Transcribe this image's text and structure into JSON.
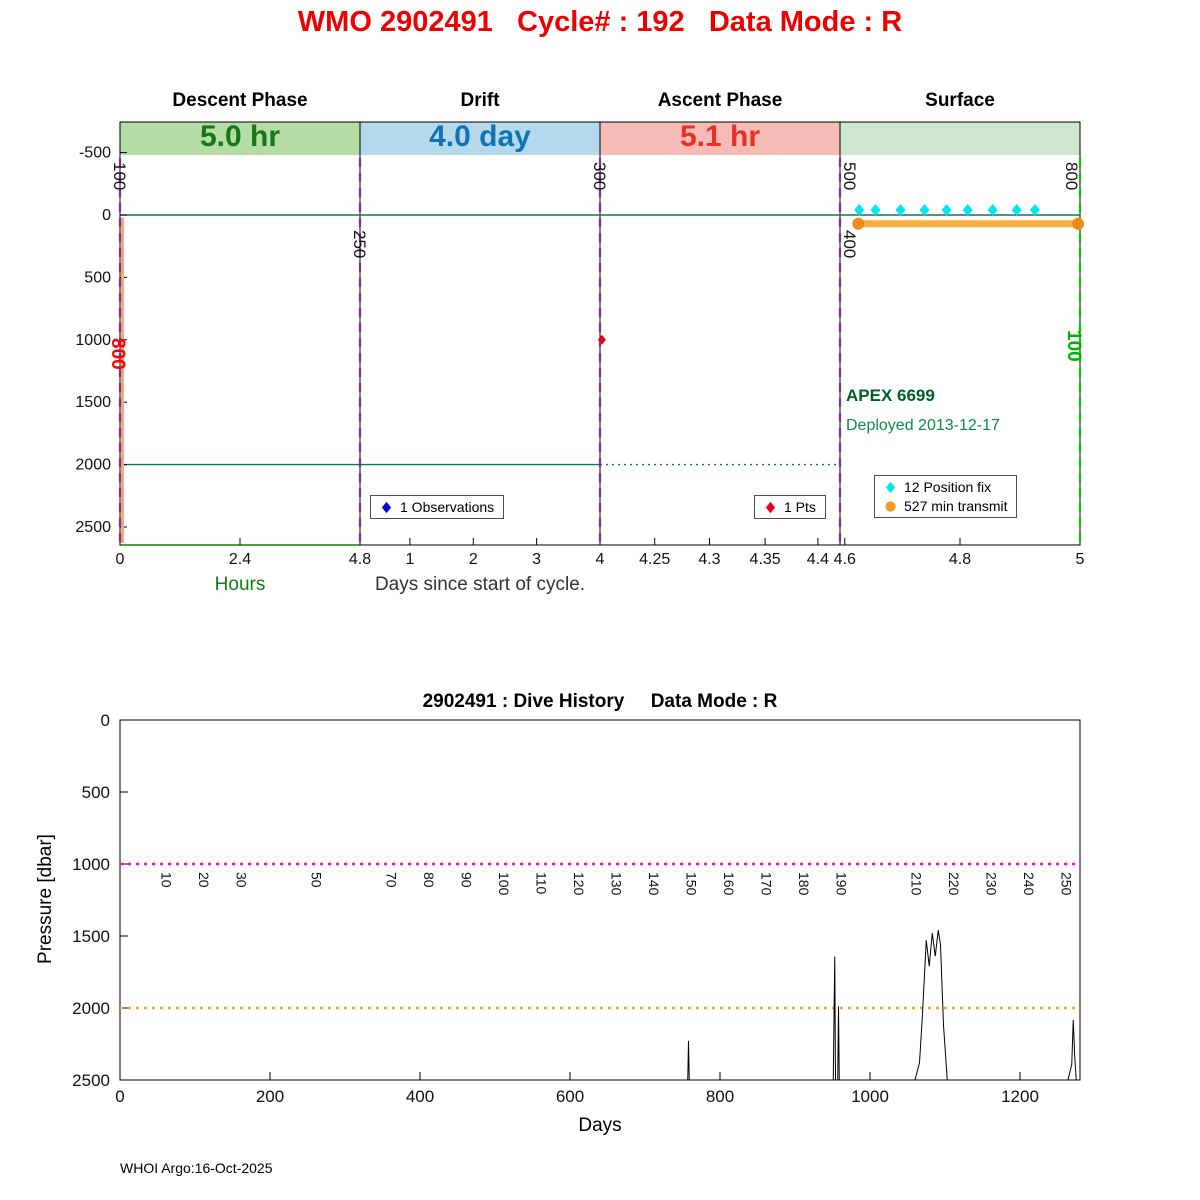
{
  "page": {
    "title": "WMO 2902491   Cycle# : 192   Data Mode : R",
    "footer": "WHOI Argo:16-Oct-2025"
  },
  "chart_data": [
    {
      "type": "line",
      "name": "cycle-timing",
      "phases": [
        {
          "label": "Descent Phase",
          "duration": "5.0 hr",
          "band_color": "#B4DCA4",
          "text_color": "#157815"
        },
        {
          "label": "Drift",
          "duration": "4.0 day",
          "band_color": "#B4D9EC",
          "text_color": "#1173B6"
        },
        {
          "label": "Ascent Phase",
          "duration": "5.1 hr",
          "band_color": "#F6BBB4",
          "text_color": "#E63226"
        },
        {
          "label": "Surface",
          "duration": "",
          "band_color": "#CCE7CD",
          "text_color": "#000000"
        }
      ],
      "y_ticks": [
        -500,
        0,
        500,
        1000,
        1500,
        2000,
        2500
      ],
      "x_ticks": [
        {
          "label": "0",
          "f": 0.0
        },
        {
          "label": "2.4",
          "f": 0.125
        },
        {
          "label": "4.8",
          "f": 0.25
        },
        {
          "label": "1",
          "f": 0.302
        },
        {
          "label": "2",
          "f": 0.368
        },
        {
          "label": "3",
          "f": 0.434
        },
        {
          "label": "4",
          "f": 0.5
        },
        {
          "label": "4.25",
          "f": 0.557
        },
        {
          "label": "4.3",
          "f": 0.614
        },
        {
          "label": "4.35",
          "f": 0.672
        },
        {
          "label": "4.4",
          "f": 0.727
        },
        {
          "label": "4.6",
          "f": 0.755
        },
        {
          "label": "4.8",
          "f": 0.875
        },
        {
          "label": "5",
          "f": 1.0
        }
      ],
      "axis_captions": {
        "hours": "Hours",
        "days": "Days since start of cycle."
      },
      "x_markers": [
        {
          "f": 0.0,
          "color": "#7E2F8E",
          "accent": true,
          "labels": [
            {
              "text": "100",
              "color": "#111111",
              "y": 162,
              "dx": -6
            },
            {
              "text": "800",
              "color": "#FF0000",
              "y": 338,
              "dx": -8,
              "bold": true
            }
          ]
        },
        {
          "f": 0.25,
          "color": "#7E2F8E",
          "labels": [
            {
              "text": "250",
              "color": "#111111",
              "y": 230,
              "dx": -6
            }
          ]
        },
        {
          "f": 0.5,
          "color": "#7E2F8E",
          "labels": [
            {
              "text": "300",
              "color": "#111111",
              "y": 162,
              "dx": -6
            }
          ]
        },
        {
          "f": 0.75,
          "color": "#7E2F8E",
          "labels": [
            {
              "text": "500",
              "color": "#111111",
              "y": 162,
              "dx": 4
            },
            {
              "text": "400",
              "color": "#111111",
              "y": 230,
              "dx": 4
            }
          ]
        },
        {
          "f": 1.0,
          "color": "#00CC00",
          "labels": [
            {
              "text": "800",
              "color": "#111111",
              "y": 162,
              "dx": -14
            },
            {
              "text": "100",
              "color": "#00B200",
              "y": 330,
              "dx": -12,
              "bold": true
            }
          ]
        }
      ],
      "pressure_lines": [
        0,
        2000
      ],
      "position_fixes_f": [
        0.77,
        0.787,
        0.813,
        0.838,
        0.861,
        0.883,
        0.909,
        0.934,
        0.953
      ],
      "position_fix_pressure": -40,
      "transmit": {
        "f_start": 0.769,
        "f_end": 0.998,
        "pressure": 70
      },
      "ascent_point": {
        "f": 0.502,
        "pressure": 1000
      },
      "annotations": {
        "float_model": "APEX 6699",
        "deployed": "Deployed 2013-12-17"
      },
      "legends": {
        "observations": "1 Observations",
        "pts": "1 Pts",
        "position_fix": "12 Position fix",
        "transmit": "527 min transmit"
      },
      "colors": {
        "pressure_line": "#0A7A50",
        "marker_line": "#7E2F8E",
        "right_marker_line": "#00CC00",
        "accent": "#F4A582",
        "position_fix": "#00E5EE",
        "transmit": "#F5A01E",
        "point": "#E8001C",
        "hours_caption": "#108010"
      }
    },
    {
      "type": "line",
      "name": "dive-history",
      "title": "2902491 : Dive History     Data Mode : R",
      "xlabel": "Days",
      "ylabel": "Pressure [dbar]",
      "xlim": [
        0,
        1280
      ],
      "ylim": [
        0,
        2500
      ],
      "y_inverted": true,
      "x_ticks": [
        0,
        200,
        400,
        600,
        800,
        1000,
        1200
      ],
      "y_ticks": [
        0,
        500,
        1000,
        1500,
        2000,
        2500
      ],
      "hlines": [
        {
          "value": 1000,
          "color": "#FF00FF"
        },
        {
          "value": 2000,
          "color": "#F5A623"
        }
      ],
      "cycle_labels": [
        {
          "cycle": "10",
          "day": 50
        },
        {
          "cycle": "20",
          "day": 100
        },
        {
          "cycle": "30",
          "day": 150
        },
        {
          "cycle": "50",
          "day": 250
        },
        {
          "cycle": "70",
          "day": 350
        },
        {
          "cycle": "80",
          "day": 400
        },
        {
          "cycle": "90",
          "day": 450
        },
        {
          "cycle": "100",
          "day": 500
        },
        {
          "cycle": "110",
          "day": 550
        },
        {
          "cycle": "120",
          "day": 600
        },
        {
          "cycle": "130",
          "day": 650
        },
        {
          "cycle": "140",
          "day": 700
        },
        {
          "cycle": "150",
          "day": 750
        },
        {
          "cycle": "160",
          "day": 800
        },
        {
          "cycle": "170",
          "day": 850
        },
        {
          "cycle": "180",
          "day": 900
        },
        {
          "cycle": "190",
          "day": 950
        },
        {
          "cycle": "210",
          "day": 1050
        },
        {
          "cycle": "220",
          "day": 1100
        },
        {
          "cycle": "230",
          "day": 1150
        },
        {
          "cycle": "240",
          "day": 1200
        },
        {
          "cycle": "250",
          "day": 1250
        }
      ],
      "trace_color": "#000000",
      "trace_segments": [
        [
          [
            757,
            2500
          ],
          [
            758,
            2228
          ],
          [
            759,
            2500
          ]
        ],
        [
          [
            951,
            2500
          ],
          [
            953,
            1642
          ],
          [
            954,
            2500
          ]
        ],
        [
          [
            957,
            2500
          ],
          [
            958,
            1988
          ],
          [
            959,
            2500
          ]
        ],
        [
          [
            1060,
            2500
          ],
          [
            1066,
            2380
          ],
          [
            1070,
            2040
          ],
          [
            1075,
            1530
          ],
          [
            1079,
            1710
          ],
          [
            1083,
            1480
          ],
          [
            1087,
            1640
          ],
          [
            1091,
            1460
          ],
          [
            1094,
            1560
          ],
          [
            1098,
            2120
          ],
          [
            1103,
            2500
          ]
        ],
        [
          [
            1264,
            2500
          ],
          [
            1269,
            2392
          ],
          [
            1271,
            2082
          ],
          [
            1273,
            2344
          ],
          [
            1275,
            2500
          ]
        ]
      ]
    }
  ]
}
